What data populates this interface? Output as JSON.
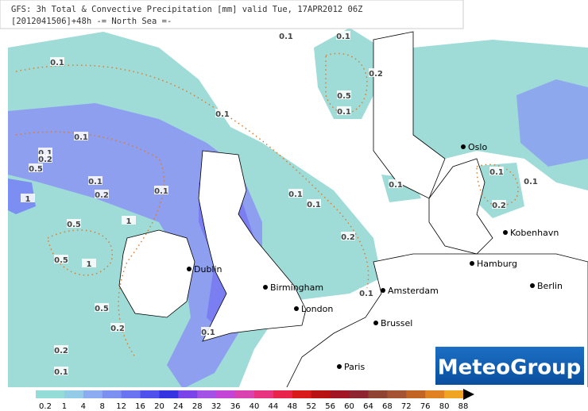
{
  "header": {
    "line1": "GFS: 3h Total & Convective Precipitation [mm] valid Tue, 17APR2012 06Z",
    "line2": "[2012041506]+48h -= North Sea =-"
  },
  "cities": [
    "Oslo",
    "Kobenhavn",
    "Hamburg",
    "Berlin",
    "Dublin",
    "Birmingham",
    "Amsterdam",
    "London",
    "Brussel",
    "Paris"
  ],
  "contour_labels": [
    "0.1",
    "0.1",
    "0.1",
    "0.2",
    "0.5",
    "0.1",
    "0.1",
    "0.1",
    "0.1",
    "0.2",
    "0.5",
    "0.1",
    "0.1",
    "0.2",
    "1",
    "0.1",
    "0.1",
    "0.1",
    "0.1",
    "0.1",
    "0.2",
    "1",
    "0.5",
    "0.2",
    "0.5",
    "1",
    "0.5",
    "0.2",
    "0.1",
    "0.1",
    "0.2",
    "0.1"
  ],
  "logo": "MeteoGroup",
  "legend": {
    "ticks": [
      0.2,
      1,
      4,
      8,
      12,
      16,
      20,
      24,
      28,
      32,
      36,
      40,
      44,
      48,
      52,
      56,
      60,
      64,
      68,
      72,
      76,
      80,
      88
    ],
    "colors": [
      "#93dcd8",
      "#94cce8",
      "#8cacf2",
      "#7c90f2",
      "#6a74f0",
      "#5050ec",
      "#3434e0",
      "#7a44e8",
      "#a452e6",
      "#c444d6",
      "#da42b0",
      "#e83480",
      "#e8244a",
      "#d81a1a",
      "#b81212",
      "#a01424",
      "#8e2430",
      "#8e4430",
      "#a45432",
      "#c26424",
      "#e08224",
      "#f0a424",
      "#f2d424"
    ]
  }
}
